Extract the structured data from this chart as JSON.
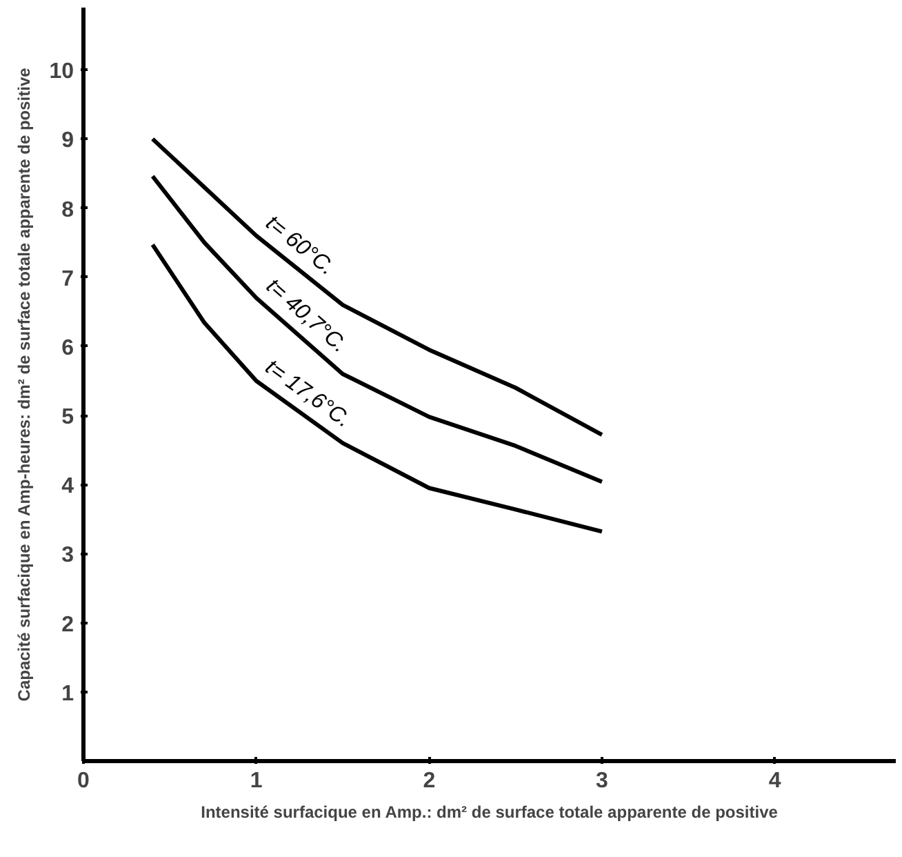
{
  "chart_data": {
    "type": "line",
    "xlabel": "Intensité surfacique en Amp.: dm² de surface totale apparente de positive",
    "ylabel": "Capacité surfacique en Amp-heures: dm² de surface totale apparente de positive",
    "x": [
      0.4,
      0.7,
      1,
      1.5,
      2,
      2.5,
      3
    ],
    "series": [
      {
        "name": "t= 60°C.",
        "color": "#000000",
        "values": [
          9.0,
          8.3,
          7.6,
          6.6,
          5.95,
          5.4,
          4.72
        ]
      },
      {
        "name": "t= 40,7°C.",
        "color": "#000000",
        "values": [
          8.46,
          7.5,
          6.7,
          5.6,
          4.98,
          4.56,
          4.04
        ]
      },
      {
        "name": "t= 17,6°C.",
        "color": "#000000",
        "values": [
          7.47,
          6.34,
          5.5,
          4.6,
          3.95,
          3.64,
          3.32
        ]
      }
    ],
    "xlim": [
      0,
      4.7
    ],
    "ylim": [
      0,
      10.9
    ],
    "xticks": [
      0,
      1,
      2,
      3,
      4
    ],
    "yticks": [
      1,
      2,
      3,
      4,
      5,
      6,
      7,
      8,
      9,
      10
    ],
    "grid": false,
    "legend": false,
    "marker": "none",
    "line_style": "solid"
  }
}
